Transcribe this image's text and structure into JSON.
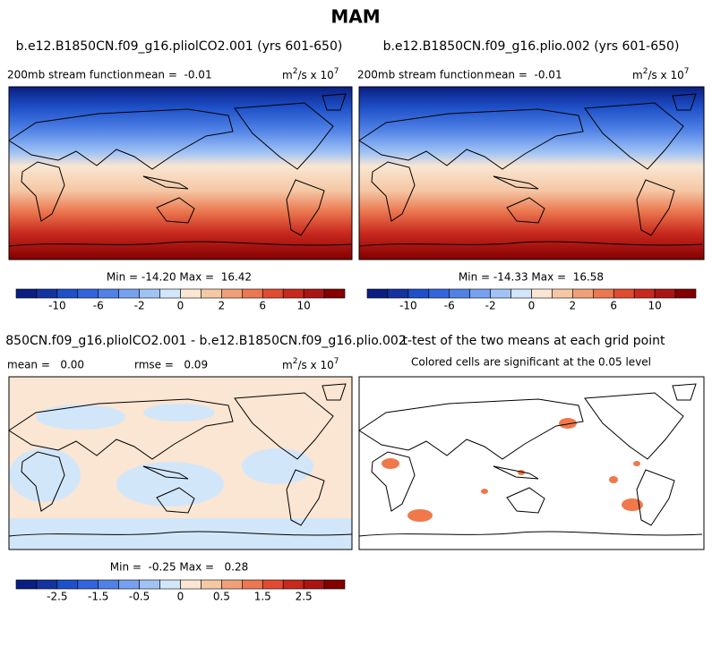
{
  "title": "MAM",
  "panels": [
    {
      "title": "b.e12.B1850CN.f09_g16.pliolCO2.001 (yrs 601-650)",
      "subtitle_left": "200mb stream function",
      "subtitle_right": "mean =  -0.01",
      "units": [
        "m",
        "2",
        "/s x 10",
        "7"
      ],
      "stats": "Min = -14.20 Max =  16.42",
      "colorbar": {
        "colors": [
          "#0a1e82",
          "#1432a0",
          "#1e50c8",
          "#3264dc",
          "#5082e6",
          "#78a0f0",
          "#a0c3f5",
          "#d2e6fa",
          "#fae6d2",
          "#f5c8a5",
          "#f0a078",
          "#eb7850",
          "#e14b32",
          "#c8281e",
          "#aa1414",
          "#820000"
        ],
        "ticks": [
          -10,
          -6,
          -2,
          0,
          2,
          6,
          10
        ]
      }
    },
    {
      "title": "b.e12.B1850CN.f09_g16.plio.002 (yrs 601-650)",
      "subtitle_left": "200mb stream function",
      "subtitle_right": "mean =  -0.01",
      "units": [
        "m",
        "2",
        "/s x 10",
        "7"
      ],
      "stats": "Min = -14.33 Max =  16.58",
      "colorbar": {
        "colors": [
          "#0a1e82",
          "#1432a0",
          "#1e50c8",
          "#3264dc",
          "#5082e6",
          "#78a0f0",
          "#a0c3f5",
          "#d2e6fa",
          "#fae6d2",
          "#f5c8a5",
          "#f0a078",
          "#eb7850",
          "#e14b32",
          "#c8281e",
          "#aa1414",
          "#820000"
        ],
        "ticks": [
          -10,
          -6,
          -2,
          0,
          2,
          6,
          10
        ]
      }
    },
    {
      "title": "850CN.f09_g16.pliolCO2.001 - b.e12.B1850CN.f09_g16.plio.002",
      "subtitle_left": "mean =   0.00",
      "subtitle_mid": "rmse =   0.09",
      "units": [
        "m",
        "2",
        "/s x 10",
        "7"
      ],
      "stats": "Min =  -0.25 Max =   0.28",
      "colorbar": {
        "colors": [
          "#0a1e82",
          "#1432a0",
          "#1e50c8",
          "#3264dc",
          "#5082e6",
          "#78a0f0",
          "#a0c3f5",
          "#d2e6fa",
          "#fae6d2",
          "#f5c8a5",
          "#f0a078",
          "#eb7850",
          "#e14b32",
          "#c8281e",
          "#aa1414",
          "#820000"
        ],
        "ticks": [
          -2.5,
          -1.5,
          -0.5,
          0,
          0.5,
          1.5,
          2.5
        ]
      }
    },
    {
      "title": "t-test of the two means at each grid point",
      "subtitle": "Colored cells are significant at the 0.05 level"
    }
  ]
}
